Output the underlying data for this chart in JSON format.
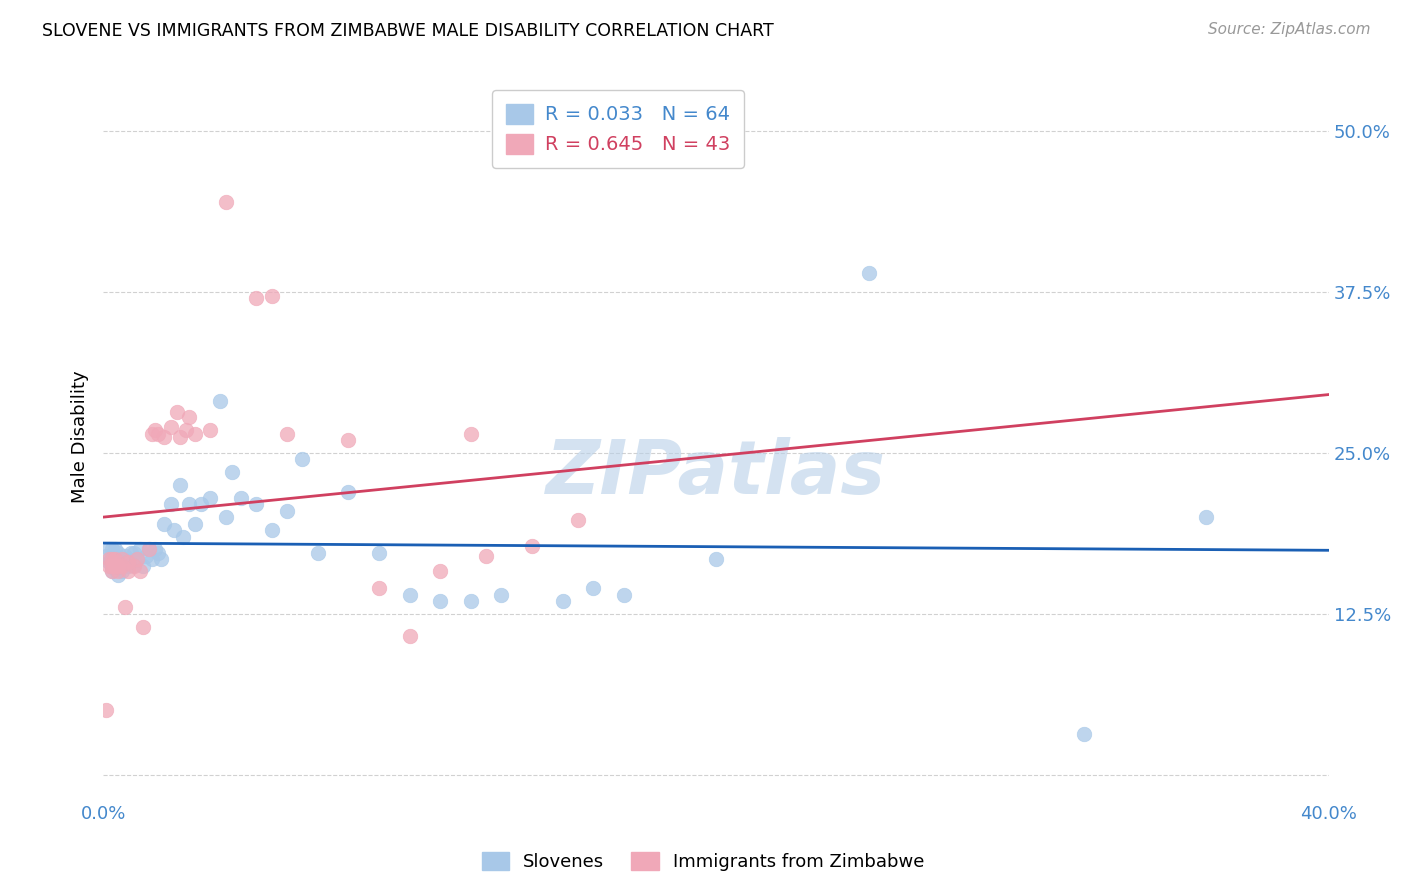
{
  "title": "SLOVENE VS IMMIGRANTS FROM ZIMBABWE MALE DISABILITY CORRELATION CHART",
  "source": "Source: ZipAtlas.com",
  "ylabel": "Male Disability",
  "xlim": [
    0.0,
    0.4
  ],
  "ylim": [
    -0.02,
    0.545
  ],
  "yticks": [
    0.0,
    0.125,
    0.25,
    0.375,
    0.5
  ],
  "ytick_labels": [
    "",
    "12.5%",
    "25.0%",
    "37.5%",
    "50.0%"
  ],
  "xticks": [
    0.0,
    0.1,
    0.2,
    0.3,
    0.4
  ],
  "xtick_labels": [
    "0.0%",
    "",
    "",
    "",
    "40.0%"
  ],
  "background_color": "#ffffff",
  "grid_color": "#cccccc",
  "slovene_color": "#a8c8e8",
  "zimbabwe_color": "#f0a8b8",
  "slovene_line_color": "#1a5fb4",
  "zimbabwe_line_color": "#d04060",
  "legend_R1": "R = 0.033",
  "legend_N1": "N = 64",
  "legend_R2": "R = 0.645",
  "legend_N2": "N = 43",
  "watermark": "ZIPatlas",
  "slovene_x": [
    0.001,
    0.002,
    0.002,
    0.003,
    0.003,
    0.003,
    0.003,
    0.004,
    0.004,
    0.004,
    0.004,
    0.005,
    0.005,
    0.005,
    0.006,
    0.006,
    0.006,
    0.007,
    0.007,
    0.008,
    0.008,
    0.009,
    0.01,
    0.01,
    0.011,
    0.012,
    0.013,
    0.014,
    0.015,
    0.016,
    0.017,
    0.018,
    0.019,
    0.02,
    0.022,
    0.023,
    0.025,
    0.026,
    0.028,
    0.03,
    0.032,
    0.035,
    0.038,
    0.04,
    0.042,
    0.045,
    0.05,
    0.055,
    0.06,
    0.065,
    0.07,
    0.08,
    0.09,
    0.1,
    0.11,
    0.12,
    0.13,
    0.15,
    0.16,
    0.17,
    0.2,
    0.25,
    0.32,
    0.36
  ],
  "slovene_y": [
    0.17,
    0.165,
    0.175,
    0.158,
    0.162,
    0.168,
    0.175,
    0.16,
    0.165,
    0.17,
    0.175,
    0.155,
    0.16,
    0.172,
    0.158,
    0.163,
    0.168,
    0.165,
    0.17,
    0.162,
    0.168,
    0.172,
    0.163,
    0.172,
    0.168,
    0.175,
    0.162,
    0.17,
    0.175,
    0.168,
    0.175,
    0.172,
    0.168,
    0.195,
    0.21,
    0.19,
    0.225,
    0.185,
    0.21,
    0.195,
    0.21,
    0.215,
    0.29,
    0.2,
    0.235,
    0.215,
    0.21,
    0.19,
    0.205,
    0.245,
    0.172,
    0.22,
    0.172,
    0.14,
    0.135,
    0.135,
    0.14,
    0.135,
    0.145,
    0.14,
    0.168,
    0.39,
    0.032,
    0.2
  ],
  "zimbabwe_x": [
    0.001,
    0.002,
    0.002,
    0.003,
    0.003,
    0.003,
    0.004,
    0.004,
    0.005,
    0.005,
    0.006,
    0.006,
    0.007,
    0.008,
    0.008,
    0.01,
    0.011,
    0.012,
    0.013,
    0.015,
    0.016,
    0.017,
    0.018,
    0.02,
    0.022,
    0.024,
    0.025,
    0.027,
    0.028,
    0.03,
    0.035,
    0.04,
    0.05,
    0.055,
    0.06,
    0.08,
    0.09,
    0.1,
    0.11,
    0.12,
    0.125,
    0.14,
    0.155
  ],
  "zimbabwe_y": [
    0.05,
    0.162,
    0.168,
    0.158,
    0.162,
    0.168,
    0.162,
    0.168,
    0.158,
    0.162,
    0.162,
    0.168,
    0.13,
    0.158,
    0.165,
    0.162,
    0.168,
    0.158,
    0.115,
    0.175,
    0.265,
    0.268,
    0.265,
    0.262,
    0.27,
    0.282,
    0.262,
    0.268,
    0.278,
    0.265,
    0.268,
    0.445,
    0.37,
    0.372,
    0.265,
    0.26,
    0.145,
    0.108,
    0.158,
    0.265,
    0.17,
    0.178,
    0.198
  ]
}
